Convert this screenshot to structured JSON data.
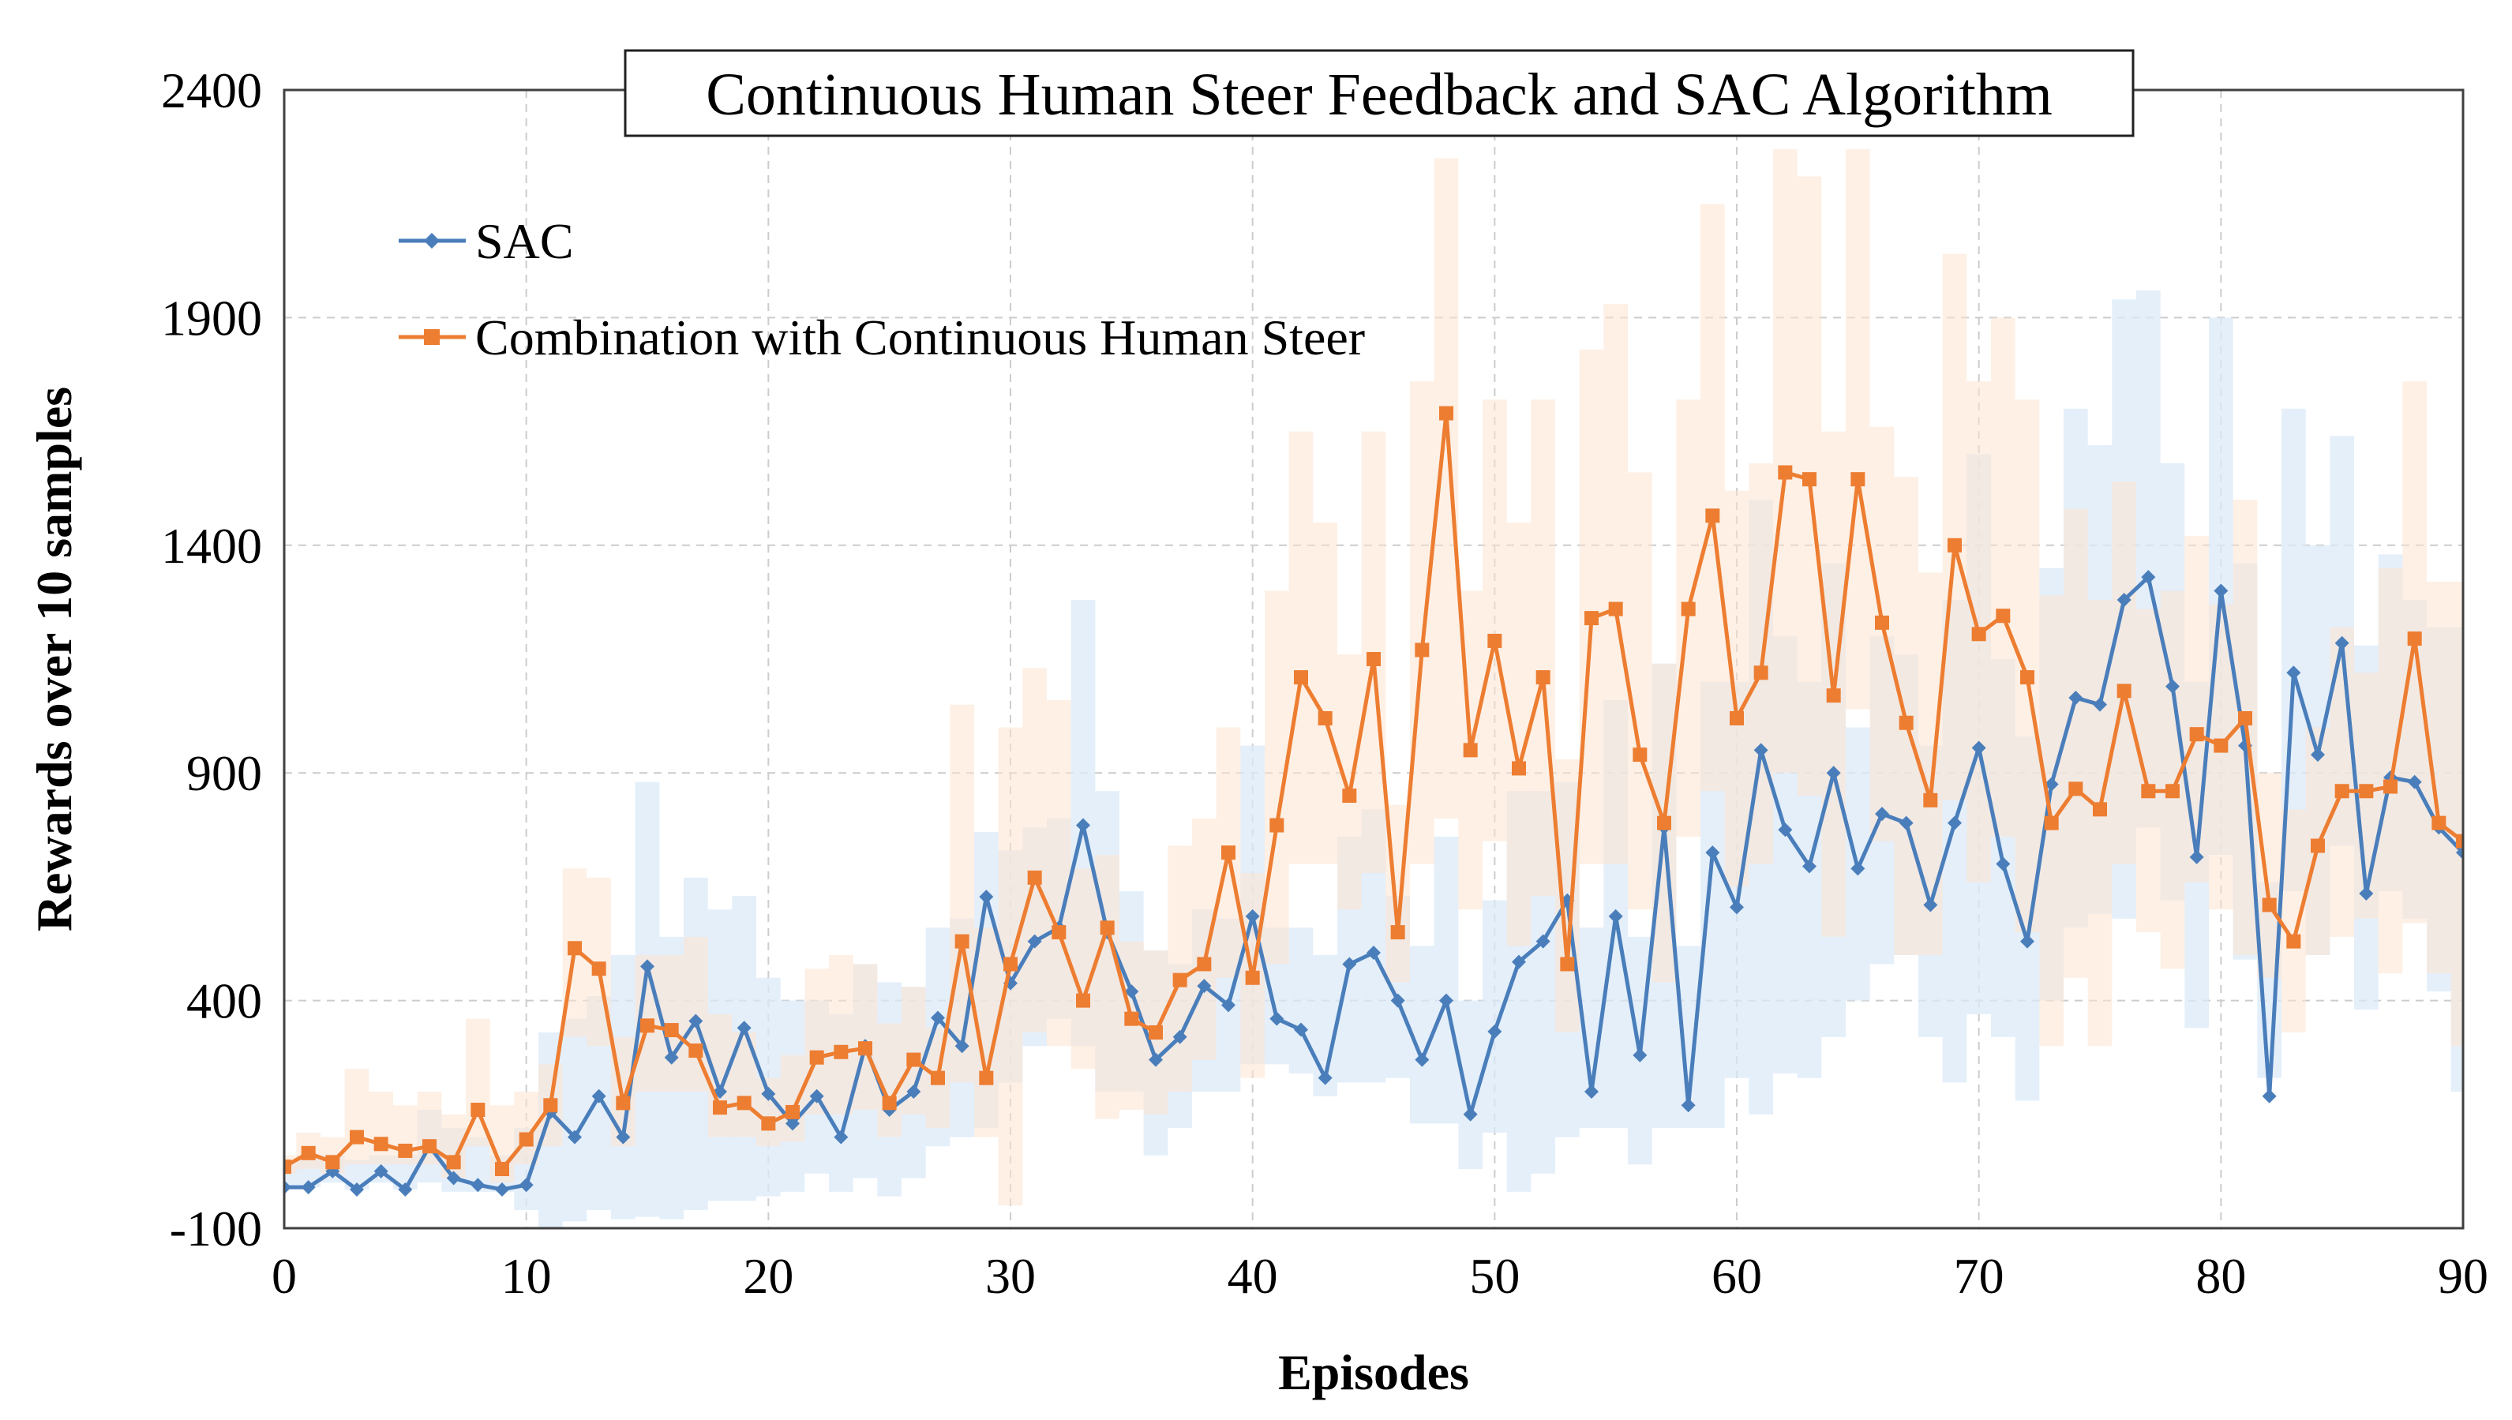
{
  "chart_data": {
    "type": "line",
    "title": "Continuous Human Steer Feedback and SAC Algorithm",
    "xlabel": "Episodes",
    "ylabel": "Rewards over 10 samples",
    "xlim": [
      0,
      90
    ],
    "ylim": [
      -100,
      2400
    ],
    "xticks": [
      0,
      10,
      20,
      30,
      40,
      50,
      60,
      70,
      80,
      90
    ],
    "yticks": [
      -100,
      400,
      900,
      1400,
      1900,
      2400
    ],
    "grid": true,
    "legend_position": "top-left",
    "series": [
      {
        "name": "SAC",
        "color": "#4a7ebb",
        "band_color": "#dbeaf8",
        "marker": "diamond",
        "values": [
          -10,
          -10,
          25,
          -15,
          25,
          -15,
          80,
          10,
          -5,
          -15,
          -5,
          155,
          100,
          190,
          100,
          475,
          275,
          355,
          200,
          340,
          195,
          130,
          190,
          100,
          300,
          160,
          200,
          362,
          300,
          628,
          438,
          530,
          560,
          785,
          550,
          420,
          270,
          320,
          432,
          390,
          585,
          360,
          336,
          230,
          480,
          505,
          400,
          270,
          400,
          150,
          332,
          485,
          530,
          620,
          200,
          585,
          280,
          780,
          170,
          725,
          605,
          950,
          775,
          695,
          900,
          690,
          810,
          790,
          610,
          790,
          955,
          700,
          530,
          875,
          1065,
          1050,
          1280,
          1330,
          1090,
          715,
          1300,
          960,
          190,
          1120,
          940,
          1185,
          635,
          890,
          880,
          780,
          725
        ],
        "band_low": [
          -10,
          -10,
          0,
          -15,
          0,
          -15,
          0,
          -20,
          -20,
          -20,
          -60,
          -100,
          -85,
          -60,
          -80,
          -75,
          -80,
          -60,
          -40,
          -40,
          -30,
          -20,
          20,
          -20,
          10,
          -30,
          10,
          80,
          100,
          120,
          220,
          300,
          360,
          300,
          200,
          200,
          60,
          120,
          200,
          200,
          260,
          260,
          240,
          190,
          220,
          220,
          230,
          130,
          130,
          30,
          110,
          -20,
          20,
          100,
          120,
          120,
          40,
          120,
          120,
          120,
          230,
          150,
          240,
          230,
          320,
          400,
          480,
          500,
          320,
          220,
          370,
          320,
          180,
          400,
          560,
          590,
          580,
          780,
          620,
          340,
          720,
          490,
          230,
          640,
          500,
          740,
          380,
          640,
          580,
          420,
          200
        ],
        "band_high": [
          40,
          60,
          60,
          50,
          60,
          60,
          160,
          120,
          100,
          60,
          120,
          330,
          360,
          410,
          500,
          880,
          540,
          670,
          600,
          630,
          450,
          400,
          400,
          370,
          480,
          440,
          430,
          560,
          580,
          770,
          730,
          780,
          800,
          1280,
          860,
          640,
          510,
          480,
          600,
          580,
          960,
          560,
          560,
          500,
          760,
          820,
          630,
          520,
          760,
          400,
          620,
          860,
          860,
          880,
          560,
          1060,
          540,
          1140,
          520,
          1100,
          1100,
          1500,
          1200,
          1100,
          1360,
          1000,
          1200,
          1160,
          960,
          1280,
          1600,
          1150,
          980,
          1350,
          1700,
          1620,
          1940,
          1960,
          1580,
          1100,
          1900,
          1360,
          660,
          1700,
          1400,
          1640,
          1180,
          1380,
          1280,
          1220,
          1220
        ]
      },
      {
        "name": "Combination with Continuous Human Steer",
        "color": "#ed7d31",
        "band_color": "#fde3d0",
        "marker": "square",
        "values": [
          35,
          65,
          45,
          100,
          85,
          70,
          80,
          45,
          160,
          30,
          95,
          170,
          515,
          470,
          175,
          345,
          335,
          290,
          165,
          175,
          130,
          155,
          275,
          287,
          295,
          175,
          270,
          230,
          530,
          230,
          480,
          670,
          550,
          400,
          560,
          360,
          330,
          445,
          480,
          725,
          450,
          785,
          1110,
          1020,
          850,
          1150,
          550,
          1170,
          1690,
          950,
          1190,
          910,
          1110,
          480,
          1240,
          1260,
          940,
          790,
          1260,
          1465,
          1020,
          1120,
          1560,
          1545,
          1070,
          1545,
          1230,
          1010,
          840,
          1400,
          1205,
          1245,
          1110,
          790,
          865,
          820,
          1080,
          860,
          860,
          985,
          960,
          1020,
          610,
          530,
          740,
          860,
          860,
          870,
          1195,
          790,
          750
        ],
        "band_low": [
          20,
          30,
          20,
          40,
          40,
          40,
          40,
          10,
          80,
          0,
          40,
          80,
          320,
          300,
          80,
          200,
          200,
          200,
          100,
          100,
          80,
          90,
          150,
          150,
          160,
          100,
          150,
          120,
          220,
          100,
          -50,
          330,
          300,
          250,
          140,
          160,
          150,
          200,
          270,
          450,
          230,
          480,
          700,
          700,
          600,
          680,
          440,
          700,
          800,
          600,
          750,
          520,
          630,
          330,
          700,
          700,
          600,
          440,
          760,
          860,
          650,
          700,
          900,
          850,
          540,
          1040,
          750,
          500,
          500,
          840,
          660,
          760,
          550,
          300,
          450,
          300,
          700,
          550,
          470,
          660,
          600,
          500,
          450,
          330,
          500,
          540,
          580,
          460,
          570,
          460,
          300
        ],
        "band_high": [
          60,
          110,
          100,
          250,
          200,
          170,
          200,
          150,
          360,
          170,
          200,
          260,
          690,
          670,
          320,
          500,
          500,
          540,
          370,
          330,
          230,
          280,
          470,
          500,
          480,
          350,
          430,
          340,
          1050,
          560,
          1000,
          1130,
          1060,
          690,
          720,
          530,
          510,
          740,
          800,
          1000,
          680,
          1300,
          1650,
          1450,
          1160,
          1650,
          830,
          1760,
          2250,
          1300,
          1720,
          1450,
          1720,
          930,
          1830,
          1930,
          1560,
          1140,
          1720,
          2150,
          1520,
          1580,
          2270,
          2210,
          1650,
          2270,
          1660,
          1550,
          1340,
          2040,
          1760,
          1900,
          1720,
          1290,
          1480,
          1280,
          1540,
          1260,
          1300,
          1420,
          1270,
          1500,
          900,
          820,
          1000,
          1220,
          1120,
          1350,
          1760,
          1320,
          1320
        ]
      }
    ]
  }
}
